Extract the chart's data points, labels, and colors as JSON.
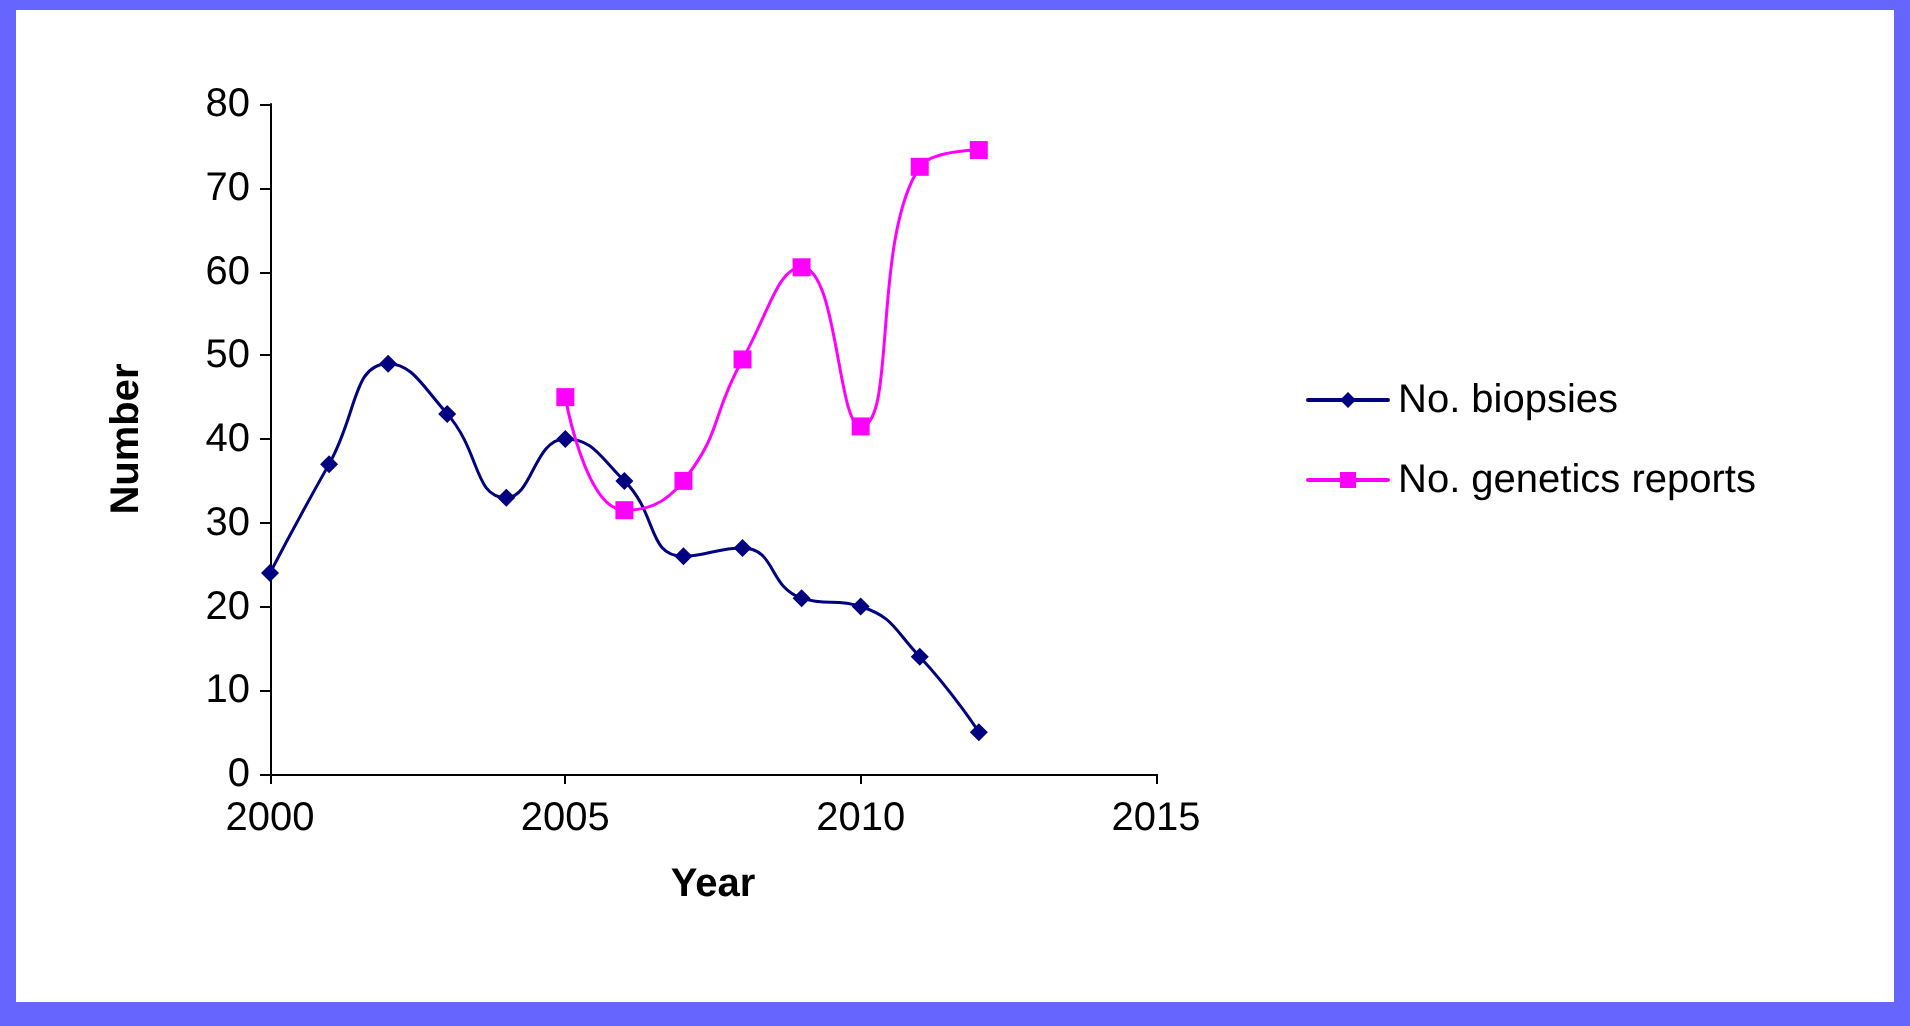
{
  "chart_data": {
    "type": "line",
    "xlabel": "Year",
    "ylabel": "Number",
    "x": [
      2000,
      2001,
      2002,
      2003,
      2004,
      2005,
      2006,
      2007,
      2008,
      2009,
      2010,
      2011,
      2012
    ],
    "series": [
      {
        "name": "No. biopsies",
        "color": "#000080",
        "marker": "diamond",
        "values": [
          24,
          37,
          49,
          43,
          33,
          40,
          35,
          26,
          27,
          21,
          20,
          14,
          5
        ]
      },
      {
        "name": "No. genetics reports",
        "color": "#ff00ff",
        "marker": "square",
        "x": [
          2005,
          2006,
          2007,
          2008,
          2009,
          2010,
          2011,
          2012
        ],
        "values": [
          45,
          31.5,
          35,
          49.5,
          60.5,
          41.5,
          72.5,
          74.5
        ]
      }
    ],
    "xlim": [
      2000,
      2015
    ],
    "xticks": [
      2000,
      2005,
      2010,
      2015
    ],
    "ylim": [
      0,
      80
    ],
    "yticks": [
      0,
      10,
      20,
      30,
      40,
      50,
      60,
      70,
      80
    ],
    "grid": false,
    "legend": "right",
    "line_style": "solid"
  }
}
